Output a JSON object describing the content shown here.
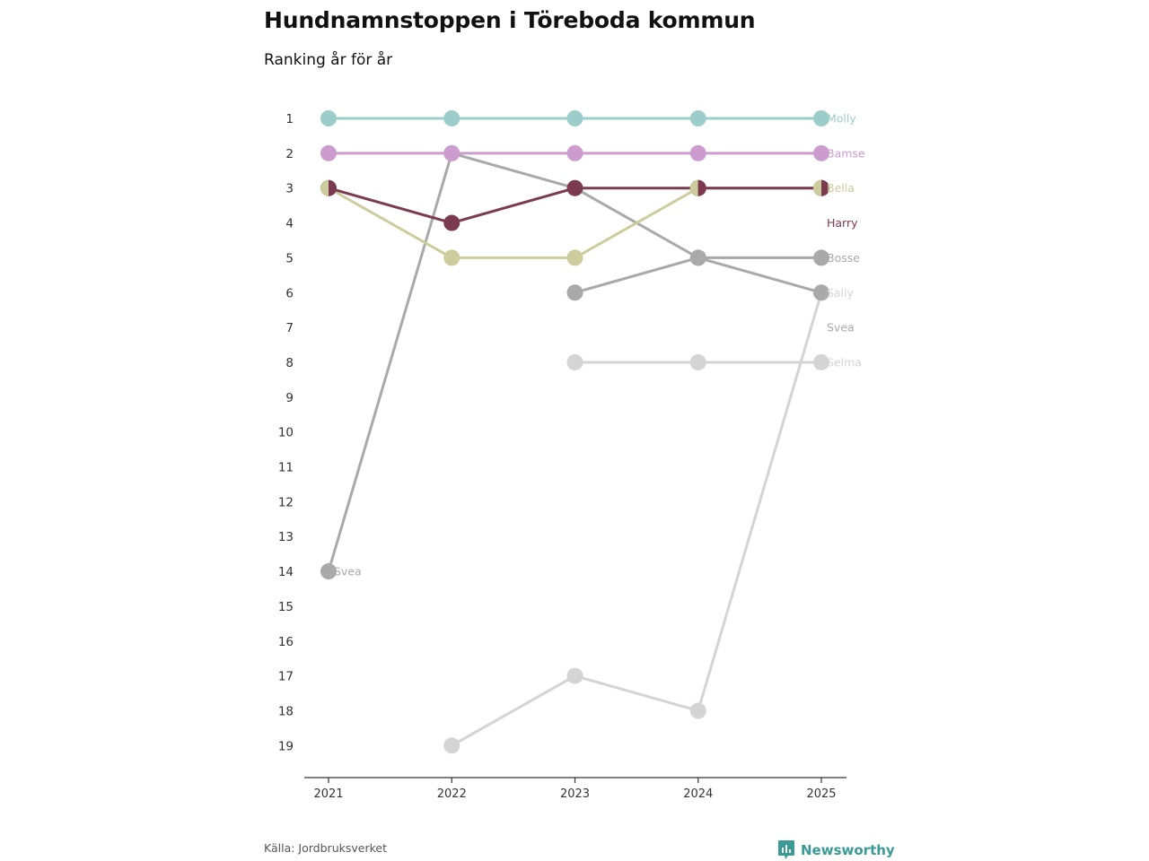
{
  "header": {
    "title": "Hundnamnstoppen i Töreboda kommun",
    "subtitle": "Ranking år för år"
  },
  "footer": {
    "source": "Källa: Jordbruksverket",
    "brand": "Newsworthy",
    "brand_color": "#3a9a95"
  },
  "chart_data": {
    "type": "line",
    "title": "Hundnamnstoppen i Töreboda kommun",
    "subtitle": "Ranking år för år",
    "x": [
      2021,
      2022,
      2023,
      2024,
      2025
    ],
    "x_tick_labels": [
      "2021",
      "2022",
      "2023",
      "2024",
      "2025"
    ],
    "y_tick_labels": [
      "1",
      "2",
      "3",
      "4",
      "5",
      "6",
      "7",
      "8",
      "9",
      "10",
      "11",
      "12",
      "13",
      "14",
      "15",
      "16",
      "17",
      "18",
      "19"
    ],
    "ylim": [
      1,
      19
    ],
    "y_reversed": true,
    "series": [
      {
        "name": "Molly",
        "color": "#9dcdcb",
        "values": [
          1,
          1,
          1,
          1,
          1
        ]
      },
      {
        "name": "Bamse",
        "color": "#cc9ccf",
        "values": [
          2,
          2,
          2,
          2,
          2
        ]
      },
      {
        "name": "Svea",
        "color": "#a9a9a9",
        "values": [
          14,
          2,
          3,
          5,
          6
        ]
      },
      {
        "name": "Bella",
        "color": "#cdcc9c",
        "values": [
          3,
          5,
          5,
          3,
          3
        ]
      },
      {
        "name": "Harry",
        "color": "#7c3a51",
        "values": [
          3,
          4,
          3,
          3,
          3
        ]
      },
      {
        "name": "Bosse",
        "color": "#a9a9a9",
        "values": [
          null,
          null,
          6,
          5,
          5
        ]
      },
      {
        "name": "Sally",
        "color": "#d4d4d4",
        "values": [
          null,
          19,
          17,
          18,
          6
        ]
      },
      {
        "name": "Selma",
        "color": "#d4d4d4",
        "values": [
          null,
          null,
          8,
          8,
          8
        ]
      }
    ],
    "end_labels": [
      {
        "text": "Molly",
        "color": "#9dcdcb",
        "rank": 1
      },
      {
        "text": "Bamse",
        "color": "#cc9ccf",
        "rank": 2
      },
      {
        "text": "Bella",
        "color": "#cdcc9c",
        "rank": 3
      },
      {
        "text": "Harry",
        "color": "#7c3a51",
        "rank": 4
      },
      {
        "text": "Bosse",
        "color": "#a9a9a9",
        "rank": 5
      },
      {
        "text": "Sally",
        "color": "#d4d4d4",
        "rank": 6
      },
      {
        "text": "Svea",
        "color": "#a9a9a9",
        "rank": 7
      },
      {
        "text": "Selma",
        "color": "#d4d4d4",
        "rank": 8
      }
    ],
    "start_label": {
      "text": "Svea",
      "color": "#a9a9a9",
      "rank": 14
    },
    "legend": "none",
    "grid": false
  }
}
